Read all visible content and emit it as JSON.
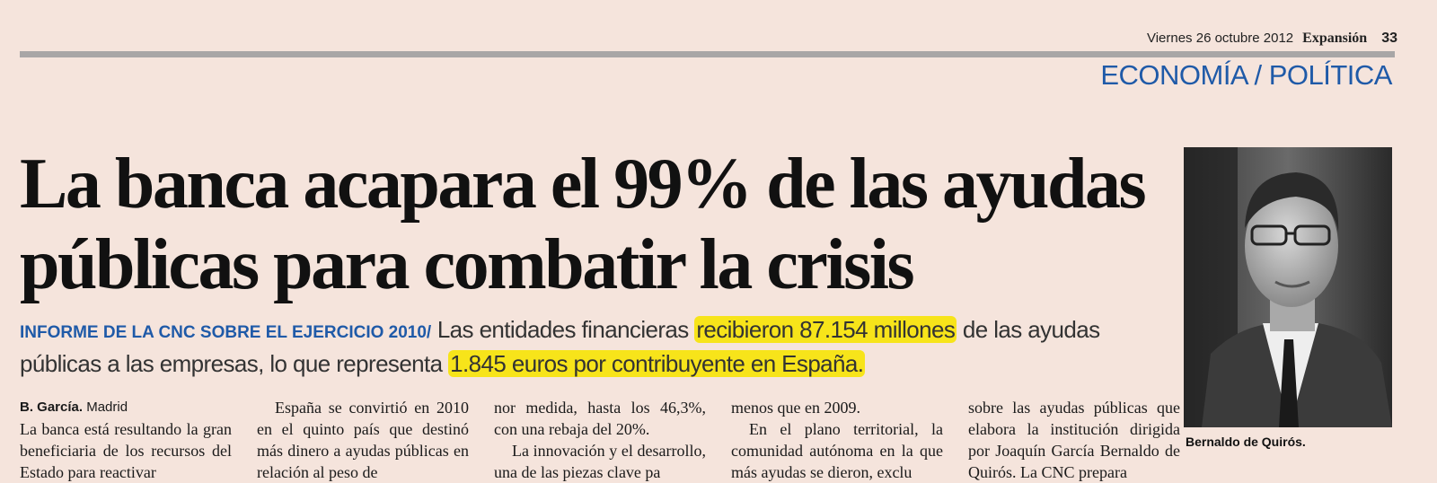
{
  "folio": {
    "date": "Viernes 26 octubre 2012",
    "paper": "Expansión",
    "page": "33"
  },
  "section": "ECONOMÍA / POLÍTICA",
  "headline": {
    "line1": "La banca acapara el 99% de las ayudas",
    "line2": "públicas para combatir la crisis"
  },
  "standfirst": {
    "kicker": "INFORME DE LA CNC SOBRE EL EJERCICIO 2010/",
    "part1": " Las entidades financieras ",
    "highlight1": "recibieron 87.154 millones",
    "part2": " de las ayudas públicas a las empresas, lo que representa ",
    "highlight2": "1.845 euros por contribuyente en España."
  },
  "byline": {
    "author": "B. García.",
    "place": " Madrid"
  },
  "columns": [
    [
      "La banca está resultando la gran beneficiaria de los recursos del Estado para reactivar"
    ],
    [
      "España se convirtió en 2010 en el quinto país que destinó más dinero a ayudas públicas en relación al peso de"
    ],
    [
      "nor medida, hasta los 46,3%, con una rebaja del 20%.",
      "La innovación y el desarrollo, una de las piezas clave pa"
    ],
    [
      "menos que en 2009.",
      "En el plano territorial, la comunidad autónoma en la que más ayudas se dieron, exclu"
    ],
    [
      "sobre las ayudas públicas que elabora la institución dirigida por Joaquín García Bernaldo de Quirós. La CNC prepara"
    ]
  ],
  "photo": {
    "alt_icon": "portrait-photo"
  },
  "caption": "Bernaldo de Quirós."
}
